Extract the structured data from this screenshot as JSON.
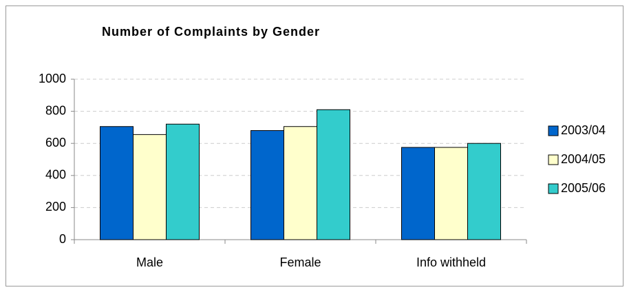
{
  "chart_data": {
    "type": "bar",
    "title": "Number of Complaints by Gender",
    "categories": [
      "Male",
      "Female",
      "Info withheld"
    ],
    "series": [
      {
        "name": "2003/04",
        "color": "#0066cc",
        "values": [
          705,
          680,
          575
        ]
      },
      {
        "name": "2004/05",
        "color": "#ffffcc",
        "values": [
          655,
          705,
          575
        ]
      },
      {
        "name": "2005/06",
        "color": "#33cccc",
        "values": [
          720,
          810,
          600
        ]
      }
    ],
    "ylim": [
      0,
      1000
    ],
    "yticks": [
      0,
      200,
      400,
      600,
      800,
      1000
    ],
    "grid": true,
    "legend": "right"
  }
}
